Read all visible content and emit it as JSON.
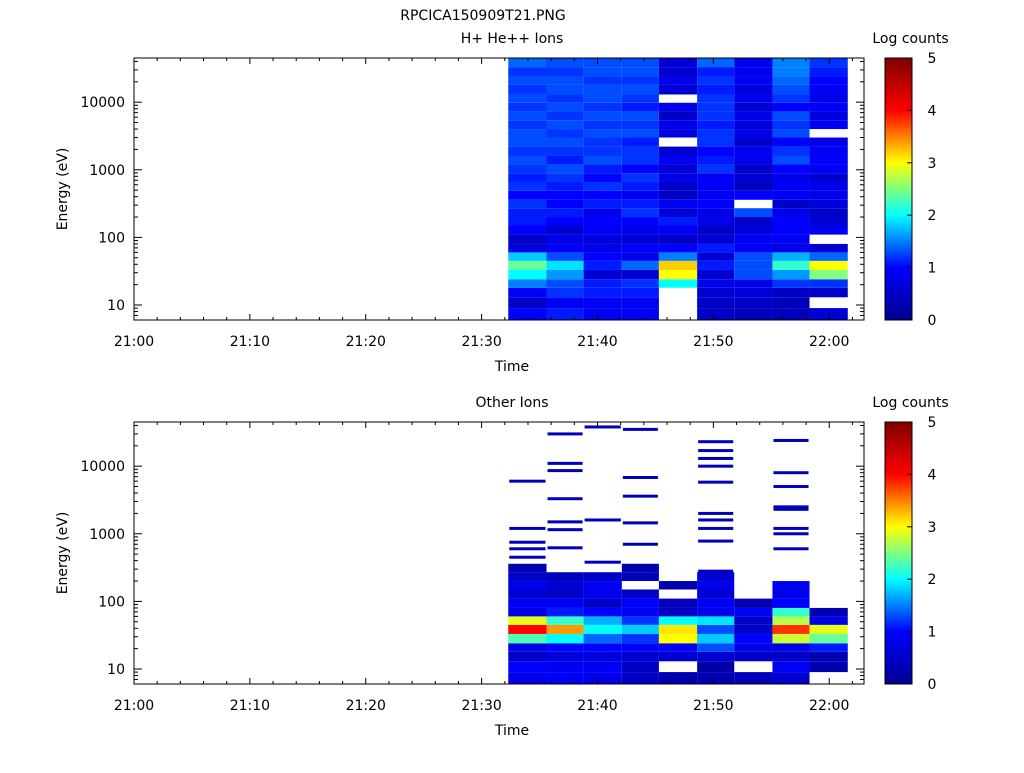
{
  "figure_title": "RPCICA150909T21.PNG",
  "colors": {
    "colormap": [
      "#00008f",
      "#0000ff",
      "#00ffff",
      "#ffff00",
      "#ff0000",
      "#800000"
    ],
    "axes": "#000000",
    "background": "#ffffff"
  },
  "chart_data": [
    {
      "type": "heatmap",
      "title": "H+ He++ Ions",
      "xlabel": "Time",
      "ylabel": "Energy (eV)",
      "x_ticks": [
        "21:00",
        "21:10",
        "21:20",
        "21:30",
        "21:40",
        "21:50",
        "22:00"
      ],
      "x_tick_minutes": [
        0,
        10,
        20,
        30,
        40,
        50,
        60
      ],
      "xlim_minutes": [
        0,
        63
      ],
      "y_scale": "log",
      "ylim": [
        6,
        45000
      ],
      "y_ticks": [
        "10",
        "100",
        "1000",
        "10000"
      ],
      "y_tick_values": [
        10,
        100,
        1000,
        10000
      ],
      "colorbar": {
        "label": "Log counts",
        "range": [
          0,
          5
        ],
        "ticks": [
          "0",
          "1",
          "2",
          "3",
          "4",
          "5"
        ]
      },
      "time_bins_minutes": [
        [
          32.3,
          35.6
        ],
        [
          35.6,
          38.8
        ],
        [
          38.8,
          42.1
        ],
        [
          42.1,
          45.3
        ],
        [
          45.3,
          48.6
        ],
        [
          48.6,
          51.8
        ],
        [
          51.8,
          55.1
        ],
        [
          55.1,
          58.3
        ],
        [
          58.3,
          61.6
        ]
      ],
      "energy_bands": [
        {
          "range_ev": [
            6,
            9
          ],
          "log_counts": [
            1.0,
            1.1,
            0.9,
            0.9,
            null,
            0.5,
            0.4,
            0.4,
            0.6
          ]
        },
        {
          "range_ev": [
            9,
            13
          ],
          "log_counts": [
            0.5,
            0.9,
            0.9,
            0.9,
            null,
            0.5,
            0.5,
            0.4,
            null
          ]
        },
        {
          "range_ev": [
            13,
            18
          ],
          "log_counts": [
            0.9,
            1.2,
            1.1,
            1.1,
            null,
            0.6,
            0.7,
            0.5,
            0.5
          ]
        },
        {
          "range_ev": [
            18,
            24
          ],
          "log_counts": [
            1.5,
            1.3,
            1.1,
            1.2,
            2.0,
            0.8,
            0.8,
            1.2,
            1.2
          ]
        },
        {
          "range_ev": [
            24,
            33
          ],
          "log_counts": [
            2.0,
            1.6,
            0.6,
            0.6,
            3.0,
            0.6,
            1.3,
            1.6,
            2.5
          ]
        },
        {
          "range_ev": [
            33,
            45
          ],
          "log_counts": [
            2.4,
            1.9,
            1.1,
            1.4,
            3.2,
            1.1,
            1.3,
            2.2,
            3.0
          ]
        },
        {
          "range_ev": [
            45,
            60
          ],
          "log_counts": [
            1.8,
            1.3,
            1.0,
            0.8,
            1.5,
            0.6,
            1.3,
            1.7,
            1.4
          ]
        },
        {
          "range_ev": [
            60,
            80
          ],
          "log_counts": [
            0.7,
            0.9,
            0.8,
            1.0,
            1.0,
            1.1,
            0.9,
            0.8,
            0.6
          ]
        },
        {
          "range_ev": [
            80,
            110
          ],
          "log_counts": [
            0.5,
            0.8,
            0.7,
            0.6,
            0.5,
            0.6,
            0.9,
            0.9,
            null
          ]
        },
        {
          "range_ev": [
            110,
            150
          ],
          "log_counts": [
            1.0,
            0.6,
            0.9,
            0.8,
            0.9,
            0.5,
            0.7,
            1.0,
            0.9
          ]
        },
        {
          "range_ev": [
            150,
            200
          ],
          "log_counts": [
            1.1,
            1.0,
            1.0,
            1.0,
            1.1,
            0.8,
            0.5,
            1.0,
            0.6
          ]
        },
        {
          "range_ev": [
            200,
            270
          ],
          "log_counts": [
            1.1,
            1.1,
            0.8,
            1.2,
            0.6,
            0.8,
            1.3,
            0.8,
            0.5
          ]
        },
        {
          "range_ev": [
            270,
            360
          ],
          "log_counts": [
            1.2,
            1.0,
            1.1,
            1.1,
            0.9,
            1.0,
            null,
            0.5,
            0.7
          ]
        },
        {
          "range_ev": [
            360,
            490
          ],
          "log_counts": [
            1.0,
            1.0,
            1.0,
            0.9,
            0.5,
            0.9,
            1.0,
            0.9,
            0.8
          ]
        },
        {
          "range_ev": [
            490,
            660
          ],
          "log_counts": [
            1.2,
            1.1,
            1.2,
            1.1,
            0.5,
            0.9,
            0.4,
            0.9,
            0.8
          ]
        },
        {
          "range_ev": [
            660,
            890
          ],
          "log_counts": [
            1.1,
            1.2,
            1.0,
            1.2,
            0.8,
            0.9,
            0.6,
            0.8,
            0.6
          ]
        },
        {
          "range_ev": [
            890,
            1200
          ],
          "log_counts": [
            1.2,
            1.3,
            1.1,
            1.0,
            0.6,
            1.2,
            0.5,
            1.0,
            0.9
          ]
        },
        {
          "range_ev": [
            1200,
            1600
          ],
          "log_counts": [
            1.3,
            1.1,
            1.3,
            1.2,
            0.9,
            1.1,
            0.8,
            1.3,
            1.0
          ]
        },
        {
          "range_ev": [
            1600,
            2200
          ],
          "log_counts": [
            1.2,
            1.2,
            1.2,
            1.2,
            0.6,
            1.0,
            0.9,
            1.2,
            0.9
          ]
        },
        {
          "range_ev": [
            2200,
            3000
          ],
          "log_counts": [
            1.3,
            1.3,
            1.2,
            1.1,
            null,
            1.2,
            0.5,
            1.0,
            0.8
          ]
        },
        {
          "range_ev": [
            3000,
            4000
          ],
          "log_counts": [
            1.3,
            1.2,
            1.3,
            1.3,
            0.7,
            1.2,
            0.8,
            1.3,
            null
          ]
        },
        {
          "range_ev": [
            4000,
            5400
          ],
          "log_counts": [
            1.2,
            1.3,
            1.2,
            1.2,
            0.8,
            1.1,
            0.7,
            1.2,
            0.9
          ]
        },
        {
          "range_ev": [
            5400,
            7300
          ],
          "log_counts": [
            1.3,
            1.2,
            1.3,
            1.3,
            0.5,
            1.2,
            0.8,
            1.3,
            0.7
          ]
        },
        {
          "range_ev": [
            7300,
            9800
          ],
          "log_counts": [
            1.2,
            1.3,
            1.2,
            1.1,
            0.8,
            1.2,
            0.6,
            1.0,
            0.9
          ]
        },
        {
          "range_ev": [
            9800,
            13000
          ],
          "log_counts": [
            1.3,
            1.2,
            1.3,
            1.2,
            null,
            1.2,
            0.8,
            1.2,
            0.8
          ]
        },
        {
          "range_ev": [
            13000,
            18000
          ],
          "log_counts": [
            1.2,
            1.3,
            1.3,
            1.3,
            0.6,
            1.1,
            0.7,
            1.3,
            0.9
          ]
        },
        {
          "range_ev": [
            18000,
            24000
          ],
          "log_counts": [
            1.3,
            1.3,
            1.2,
            1.2,
            0.8,
            1.2,
            0.9,
            1.4,
            1.0
          ]
        },
        {
          "range_ev": [
            24000,
            33000
          ],
          "log_counts": [
            1.2,
            1.2,
            1.3,
            1.3,
            0.6,
            1.1,
            0.8,
            1.5,
            1.1
          ]
        },
        {
          "range_ev": [
            33000,
            45000
          ],
          "log_counts": [
            1.4,
            1.3,
            1.3,
            1.3,
            0.7,
            1.4,
            0.9,
            1.5,
            1.2
          ]
        }
      ]
    },
    {
      "type": "heatmap",
      "title": "Other Ions",
      "xlabel": "Time",
      "ylabel": "Energy (eV)",
      "x_ticks": [
        "21:00",
        "21:10",
        "21:20",
        "21:30",
        "21:40",
        "21:50",
        "22:00"
      ],
      "x_tick_minutes": [
        0,
        10,
        20,
        30,
        40,
        50,
        60
      ],
      "xlim_minutes": [
        0,
        63
      ],
      "y_scale": "log",
      "ylim": [
        6,
        45000
      ],
      "y_ticks": [
        "10",
        "100",
        "1000",
        "10000"
      ],
      "y_tick_values": [
        10,
        100,
        1000,
        10000
      ],
      "colorbar": {
        "label": "Log counts",
        "range": [
          0,
          5
        ],
        "ticks": [
          "0",
          "1",
          "2",
          "3",
          "4",
          "5"
        ]
      },
      "time_bins_minutes": [
        [
          32.3,
          35.6
        ],
        [
          35.6,
          38.8
        ],
        [
          38.8,
          42.1
        ],
        [
          42.1,
          45.3
        ],
        [
          45.3,
          48.6
        ],
        [
          48.6,
          51.8
        ],
        [
          51.8,
          55.1
        ],
        [
          55.1,
          58.3
        ],
        [
          58.3,
          61.6
        ]
      ],
      "energy_bands": [
        {
          "range_ev": [
            6,
            9
          ],
          "log_counts": [
            0.8,
            0.9,
            0.8,
            0.5,
            0.3,
            0.3,
            0.4,
            0.6,
            null
          ]
        },
        {
          "range_ev": [
            9,
            13
          ],
          "log_counts": [
            1.0,
            0.9,
            0.9,
            0.5,
            null,
            0.2,
            null,
            0.9,
            0.3
          ]
        },
        {
          "range_ev": [
            13,
            18
          ],
          "log_counts": [
            0.5,
            0.7,
            0.7,
            0.6,
            0.6,
            0.6,
            0.5,
            0.5,
            0.3
          ]
        },
        {
          "range_ev": [
            18,
            24
          ],
          "log_counts": [
            0.8,
            1.0,
            1.0,
            0.9,
            1.0,
            1.3,
            0.8,
            0.8,
            1.1
          ]
        },
        {
          "range_ev": [
            24,
            33
          ],
          "log_counts": [
            2.3,
            2.0,
            1.4,
            1.2,
            3.0,
            1.8,
            1.0,
            2.8,
            2.4
          ]
        },
        {
          "range_ev": [
            33,
            45
          ],
          "log_counts": [
            4.0,
            3.4,
            2.0,
            1.8,
            3.1,
            1.3,
            0.5,
            3.8,
            2.9
          ]
        },
        {
          "range_ev": [
            45,
            60
          ],
          "log_counts": [
            2.9,
            2.2,
            1.7,
            1.2,
            2.0,
            1.9,
            0.5,
            2.7,
            0.8
          ]
        },
        {
          "range_ev": [
            60,
            80
          ],
          "log_counts": [
            0.8,
            1.1,
            1.0,
            0.9,
            0.5,
            0.8,
            0.9,
            2.2,
            0.3
          ]
        },
        {
          "range_ev": [
            80,
            110
          ],
          "log_counts": [
            0.9,
            0.9,
            0.5,
            1.0,
            0.4,
            0.9,
            0.3,
            1.0,
            null
          ]
        },
        {
          "range_ev": [
            110,
            150
          ],
          "log_counts": [
            0.6,
            0.5,
            0.8,
            0.5,
            null,
            0.6,
            null,
            0.8,
            null
          ]
        },
        {
          "range_ev": [
            150,
            200
          ],
          "log_counts": [
            0.8,
            0.6,
            0.9,
            null,
            0.3,
            0.8,
            null,
            0.9,
            null
          ]
        },
        {
          "range_ev": [
            200,
            270
          ],
          "log_counts": [
            0.5,
            0.4,
            0.5,
            0.4,
            null,
            0.6,
            null,
            null,
            null
          ]
        },
        {
          "range_ev": [
            270,
            360
          ],
          "log_counts": [
            0.3,
            null,
            null,
            0.3,
            null,
            null,
            null,
            null,
            null
          ]
        }
      ],
      "sparse_lines": [
        {
          "bin": 0,
          "energies_ev": [
            6000,
            1200,
            750,
            600,
            450
          ]
        },
        {
          "bin": 1,
          "energies_ev": [
            30000,
            11000,
            8600,
            3300,
            1500,
            1150,
            620
          ]
        },
        {
          "bin": 2,
          "energies_ev": [
            38000,
            1600,
            380
          ]
        },
        {
          "bin": 3,
          "energies_ev": [
            35000,
            6800,
            3600,
            1450,
            700
          ]
        },
        {
          "bin": 5,
          "energies_ev": [
            23000,
            17000,
            13000,
            10000,
            5800,
            2000,
            1600,
            1200,
            780,
            280
          ]
        },
        {
          "bin": 7,
          "energies_ev": [
            24000,
            8000,
            5000,
            2500,
            2300,
            1200,
            1000,
            600
          ]
        }
      ]
    }
  ]
}
